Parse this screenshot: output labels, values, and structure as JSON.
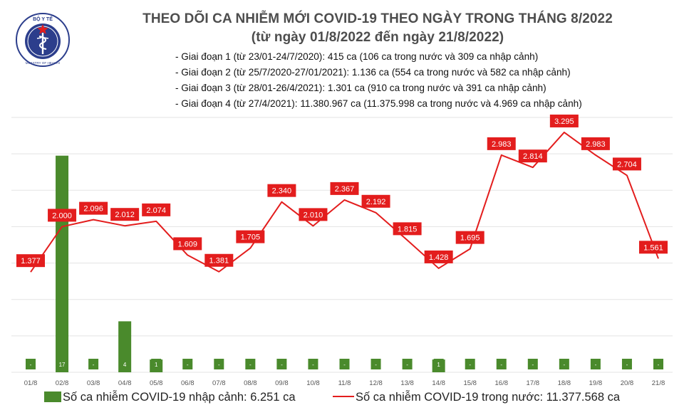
{
  "header": {
    "title": "THEO DÕI CA NHIỄM MỚI COVID-19 THEO NGÀY TRONG THÁNG 8/2022",
    "subtitle": "(từ ngày 01/8/2022 đến ngày 21/8/2022)",
    "logo": {
      "icon": "ministry-of-health-seal-icon",
      "text_top": "BỘ Y TẾ",
      "text_bottom": "MINISTRY OF HEALTH"
    },
    "phases": [
      "- Giai đoạn 1 (từ 23/01-24/7/2020): 415 ca (106 ca trong nước và 309 ca nhập cảnh)",
      "- Giai đoạn 2 (từ 25/7/2020-27/01/2021): 1.136 ca (554 ca trong nước và 582 ca nhập cảnh)",
      "- Giai đoạn 3 (từ 28/01-26/4/2021): 1.301 ca (910 ca trong nước và 391 ca nhập cảnh)",
      "- Giai đoạn 4 (từ 27/4/2021): 11.380.967 ca (11.375.998 ca trong nước và 4.969 ca nhập cảnh)"
    ]
  },
  "chart_data": {
    "type": "bar",
    "categories": [
      "01/8",
      "02/8",
      "03/8",
      "04/8",
      "05/8",
      "06/8",
      "07/8",
      "08/8",
      "09/8",
      "10/8",
      "11/8",
      "12/8",
      "13/8",
      "14/8",
      "15/8",
      "16/8",
      "17/8",
      "18/8",
      "19/8",
      "20/8",
      "21/8"
    ],
    "series": [
      {
        "name": "Số ca nhiễm COVID-19 nhập cảnh: 6.251 ca",
        "type": "bar",
        "axis": "right",
        "values": [
          0,
          17,
          0,
          4,
          1,
          0,
          0,
          0,
          0,
          0,
          0,
          0,
          0,
          1,
          0,
          0,
          0,
          0,
          0,
          0,
          0
        ],
        "labels": [
          "-",
          "17",
          "-",
          "4",
          "1",
          "-",
          "-",
          "-",
          "-",
          "-",
          "-",
          "-",
          "-",
          "1",
          "-",
          "-",
          "-",
          "-",
          "-",
          "-",
          "-"
        ],
        "color": "#4a8a2c"
      },
      {
        "name": "Số ca nhiễm COVID-19 trong nước: 11.377.568 ca",
        "type": "line",
        "axis": "left",
        "values": [
          1377,
          2000,
          2096,
          2012,
          2074,
          1609,
          1381,
          1705,
          2340,
          2010,
          2367,
          2192,
          1815,
          1428,
          1695,
          2983,
          2814,
          3295,
          2983,
          2704,
          1561
        ],
        "labels": [
          "1.377",
          "2.000",
          "2.096",
          "2.012",
          "2.074",
          "1.609",
          "1.381",
          "1.705",
          "2.340",
          "2.010",
          "2.367",
          "2.192",
          "1.815",
          "1.428",
          "1.695",
          "2.983",
          "2.814",
          "3.295",
          "2.983",
          "2.704",
          "1.561"
        ],
        "color": "#e31d1d"
      }
    ],
    "ylim_left": [
      0,
      3500
    ],
    "ylim_right": [
      0,
      20
    ],
    "grid": true,
    "legend": "bottom"
  }
}
